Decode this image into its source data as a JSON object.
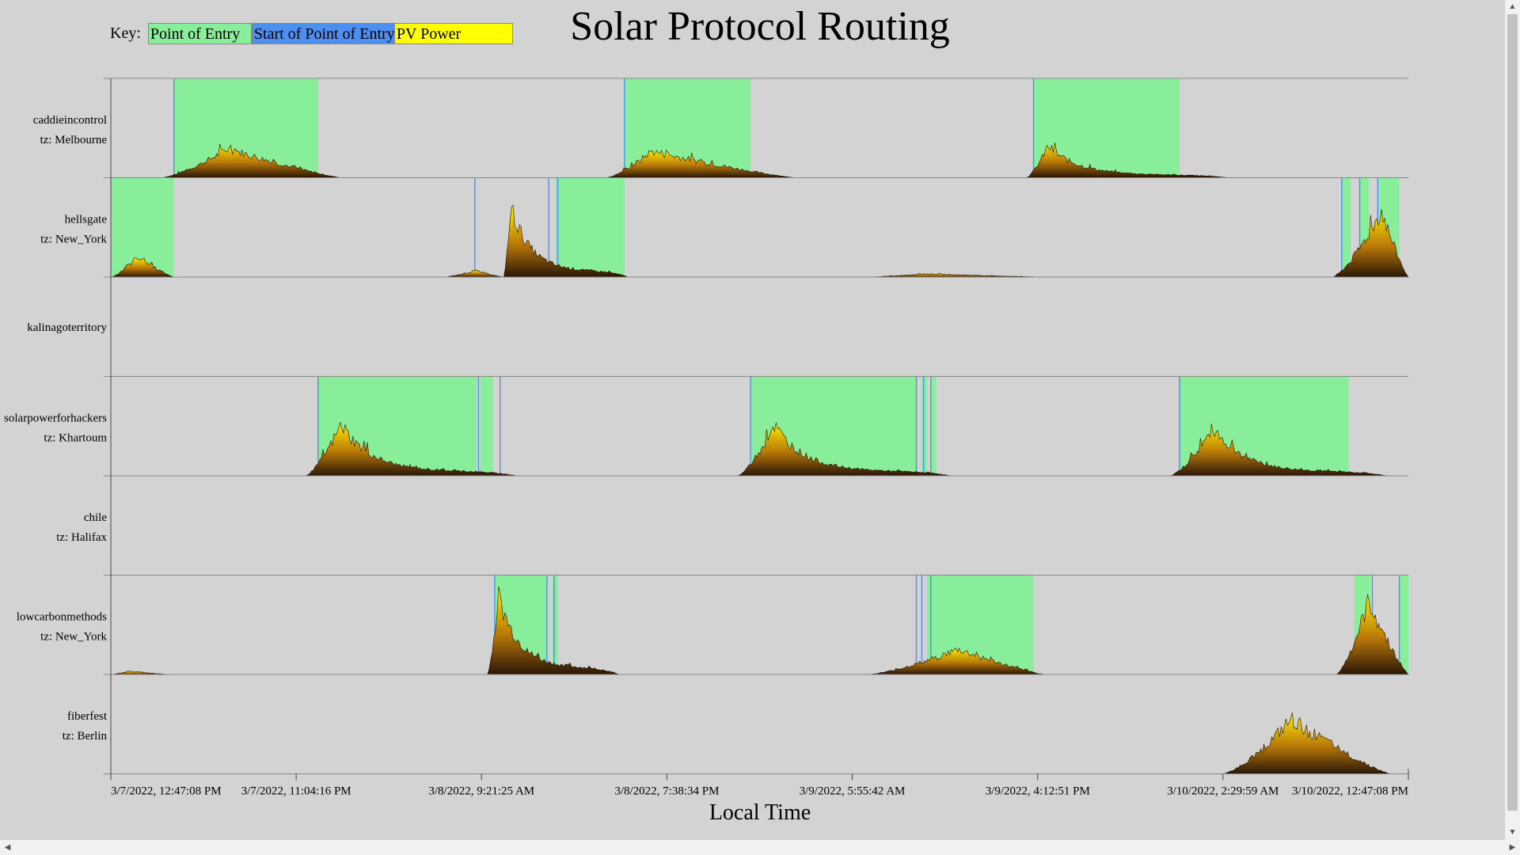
{
  "title": "Solar Protocol Routing",
  "key": {
    "label": "Key:",
    "items": [
      {
        "name": "Point of Entry",
        "color": "#88ee99"
      },
      {
        "name": "Start of Point of Entry",
        "color": "#4d8ff0"
      },
      {
        "name": "PV Power",
        "color": "#ffff00"
      }
    ]
  },
  "colors": {
    "background": "#d3d3d3",
    "poe": "#88ee99",
    "start": "#4d8ff0",
    "pv_low": "#2a1608",
    "pv_mid": "#b87808",
    "pv_high": "#ffee00"
  },
  "chart_data": {
    "type": "area",
    "xlabel": "Local Time",
    "x_unit": "hours since 3/7/2022, 12:47:08 PM",
    "x_range": [
      0,
      72
    ],
    "x_ticks": [
      {
        "h": 0,
        "label": "3/7/2022, 12:47:08 PM"
      },
      {
        "h": 10.285,
        "label": "3/7/2022, 11:04:16 PM"
      },
      {
        "h": 20.57,
        "label": "3/8/2022, 9:21:25 AM"
      },
      {
        "h": 30.855,
        "label": "3/8/2022, 7:38:34 PM"
      },
      {
        "h": 41.14,
        "label": "3/9/2022, 5:55:42 AM"
      },
      {
        "h": 51.43,
        "label": "3/9/2022, 4:12:51 PM"
      },
      {
        "h": 61.71,
        "label": "3/10/2022, 2:29:59 AM"
      },
      {
        "h": 72,
        "label": "3/10/2022, 12:47:08 PM"
      }
    ],
    "rows": [
      {
        "name": "caddieincontrol",
        "tz": "tz: Melbourne",
        "poe": [
          [
            3.5,
            11.5
          ],
          [
            28.5,
            35.5
          ],
          [
            51.2,
            59.3
          ]
        ],
        "starts": [
          3.5,
          28.5,
          51.2
        ],
        "pv_segments": [
          {
            "start": 2.8,
            "end": 12.8,
            "peak": 0.35,
            "peak_h": 6.5,
            "fast": false
          },
          {
            "start": 27.5,
            "end": 38.0,
            "peak": 0.32,
            "peak_h": 30.0,
            "fast": false
          },
          {
            "start": 50.8,
            "end": 62.0,
            "peak": 0.38,
            "peak_h": 52.0,
            "fast": true
          }
        ]
      },
      {
        "name": "hellsgate",
        "tz": "tz: New_York",
        "poe": [
          [
            0,
            3.5
          ],
          [
            24.7,
            28.5
          ],
          [
            68.3,
            68.8
          ],
          [
            69.3,
            69.8
          ],
          [
            70.3,
            71.5
          ]
        ],
        "starts": [
          20.2,
          24.3,
          24.8,
          68.3,
          69.3,
          70.3
        ],
        "pv_segments": [
          {
            "start": 0,
            "end": 3.5,
            "peak": 0.25,
            "peak_h": 1.5,
            "fast": false
          },
          {
            "start": 18.5,
            "end": 21.8,
            "peak": 0.08,
            "peak_h": 20.2,
            "fast": false
          },
          {
            "start": 21.8,
            "end": 28.7,
            "peak": 0.85,
            "peak_h": 22.2,
            "fast": true
          },
          {
            "start": 42.0,
            "end": 52.0,
            "peak": 0.04,
            "peak_h": 45.0,
            "fast": false
          },
          {
            "start": 67.8,
            "end": 72,
            "peak": 0.8,
            "peak_h": 70.5,
            "fast": false
          }
        ]
      },
      {
        "name": "kalinagoterritory",
        "tz": "",
        "poe": [],
        "starts": [],
        "pv_segments": []
      },
      {
        "name": "solarpowerforhackers",
        "tz": "tz: Khartoum",
        "poe": [
          [
            11.5,
            20.3
          ],
          [
            20.5,
            21.2
          ],
          [
            35.5,
            44.7
          ],
          [
            45.0,
            45.3
          ],
          [
            45.5,
            45.8
          ],
          [
            59.3,
            68.7
          ]
        ],
        "starts": [
          11.5,
          20.4,
          21.6,
          35.5,
          44.7,
          45.1,
          45.5,
          59.3
        ],
        "pv_segments": [
          {
            "start": 10.8,
            "end": 22.5,
            "peak": 0.62,
            "peak_h": 12.8,
            "fast": true
          },
          {
            "start": 34.8,
            "end": 46.6,
            "peak": 0.62,
            "peak_h": 36.8,
            "fast": true
          },
          {
            "start": 58.8,
            "end": 70.8,
            "peak": 0.58,
            "peak_h": 61.2,
            "fast": true
          }
        ]
      },
      {
        "name": "chile",
        "tz": "tz: Halifax",
        "poe": [],
        "starts": [],
        "pv_segments": []
      },
      {
        "name": "lowcarbonmethods",
        "tz": "tz: New_York",
        "poe": [
          [
            21.3,
            24.2
          ],
          [
            24.5,
            24.8
          ],
          [
            45.3,
            51.2
          ],
          [
            69.0,
            69.9
          ],
          [
            71.5,
            72
          ]
        ],
        "starts": [
          21.3,
          24.2,
          24.6,
          44.7,
          45.0,
          45.5,
          70.0,
          71.5
        ],
        "pv_segments": [
          {
            "start": 0,
            "end": 3.3,
            "peak": 0.04,
            "peak_h": 1.0,
            "fast": false
          },
          {
            "start": 20.9,
            "end": 28.2,
            "peak": 0.95,
            "peak_h": 21.5,
            "fast": true
          },
          {
            "start": 42.0,
            "end": 51.8,
            "peak": 0.3,
            "peak_h": 47.0,
            "fast": false
          },
          {
            "start": 68.0,
            "end": 72,
            "peak": 0.88,
            "peak_h": 69.8,
            "fast": false
          }
        ]
      },
      {
        "name": "fiberfest",
        "tz": "tz: Berlin",
        "poe": [],
        "starts": [],
        "pv_segments": [
          {
            "start": 61.7,
            "end": 71.0,
            "peak": 0.65,
            "peak_h": 65.5,
            "fast": false
          }
        ]
      }
    ]
  }
}
